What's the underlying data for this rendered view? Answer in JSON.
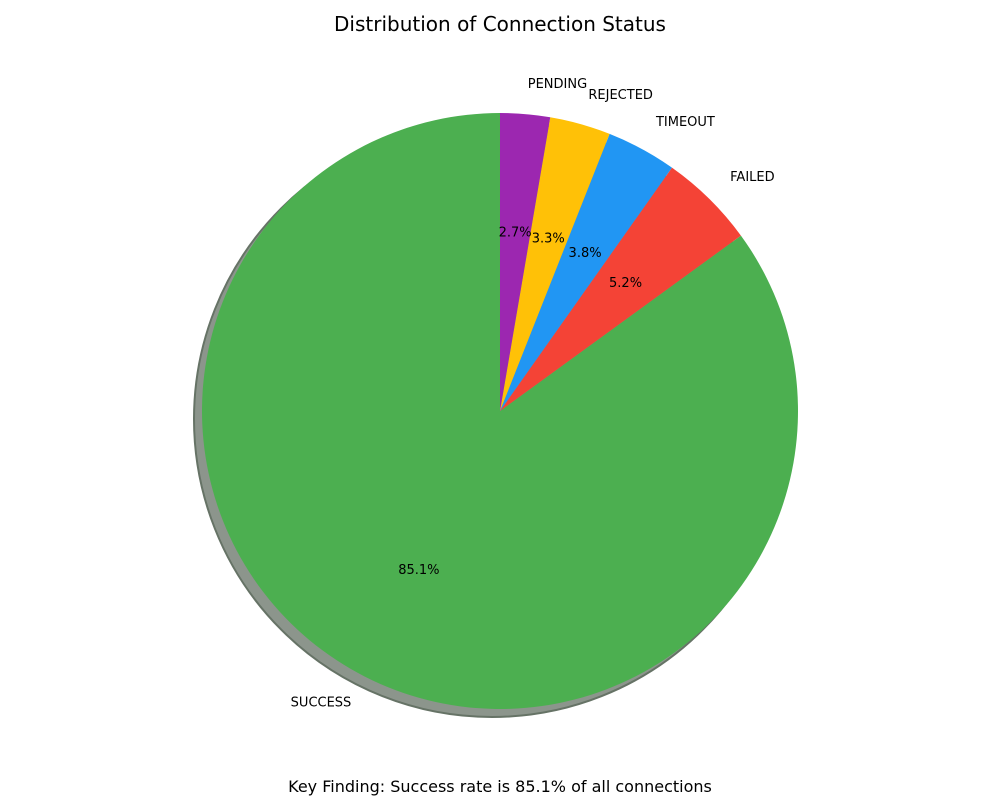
{
  "chart_data": {
    "type": "pie",
    "title": "Distribution of Connection Status",
    "categories": [
      "SUCCESS",
      "FAILED",
      "TIMEOUT",
      "REJECTED",
      "PENDING"
    ],
    "values": [
      85.1,
      5.2,
      3.8,
      3.3,
      2.7
    ],
    "percent_labels": [
      "85.1%",
      "5.2%",
      "3.8%",
      "3.3%",
      "2.7%"
    ],
    "colors": [
      "#4caf50",
      "#f44336",
      "#2196f3",
      "#ffc107",
      "#9c27b0"
    ],
    "start_angle_deg": 90,
    "direction": "counterclockwise",
    "shadow": true,
    "legend": "none"
  },
  "footnote": "Key Finding: Success rate is 85.1% of all connections"
}
